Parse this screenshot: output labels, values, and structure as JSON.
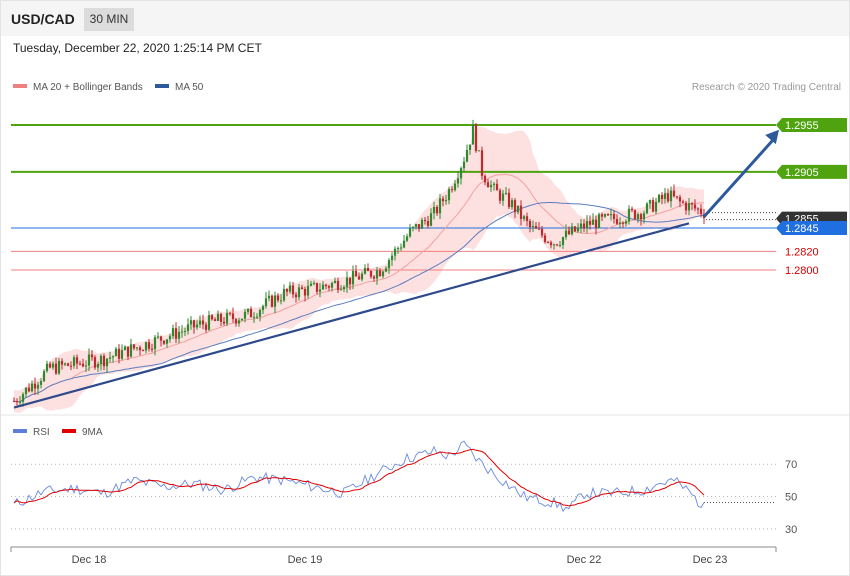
{
  "header": {
    "symbol": "USD/CAD",
    "timeframe": "30 MIN"
  },
  "datetime": "Tuesday, December 22, 2020 1:25:14 PM CET",
  "legend": [
    {
      "label": "MA 20 + Bollinger Bands",
      "color": "#f08080"
    },
    {
      "label": "MA 50",
      "color": "#2e5a9c"
    }
  ],
  "copyright": "Research © 2020 Trading Central",
  "rsi_legend": [
    {
      "label": "RSI",
      "color": "#5b7fd6"
    },
    {
      "label": "9MA",
      "color": "#e00000"
    }
  ],
  "colors": {
    "up": "#2f8a2f",
    "down": "#c0282d",
    "resistance": "#4ea30e",
    "support": "#f08080",
    "current": "#333333",
    "pivot": "#1f6fe0"
  },
  "chart_data": [
    {
      "type": "candlestick",
      "ylim": [
        1.2645,
        1.2985
      ],
      "x_ticks": [
        "Dec 18",
        "Dec 19",
        "Dec 22",
        "Dec 23"
      ],
      "levels": [
        {
          "label": "1.2955",
          "value": 1.2955,
          "kind": "resistance"
        },
        {
          "label": "1.2905",
          "value": 1.2905,
          "kind": "resistance"
        },
        {
          "label": "1.2855",
          "value": 1.2855,
          "kind": "current"
        },
        {
          "label": "1.2845",
          "value": 1.2845,
          "kind": "pivot"
        },
        {
          "label": "1.2820",
          "value": 1.282,
          "kind": "support"
        },
        {
          "label": "1.2800",
          "value": 1.28,
          "kind": "support"
        }
      ],
      "close_anchors": [
        [
          0,
          1.266
        ],
        [
          12,
          1.2695
        ],
        [
          30,
          1.2705
        ],
        [
          45,
          1.2722
        ],
        [
          62,
          1.2742
        ],
        [
          78,
          1.2752
        ],
        [
          90,
          1.2775
        ],
        [
          100,
          1.278
        ],
        [
          112,
          1.279
        ],
        [
          122,
          1.28
        ],
        [
          132,
          1.284
        ],
        [
          140,
          1.286
        ],
        [
          145,
          1.2885
        ],
        [
          150,
          1.292
        ],
        [
          153,
          1.295
        ],
        [
          156,
          1.2905
        ],
        [
          160,
          1.2885
        ],
        [
          166,
          1.287
        ],
        [
          172,
          1.2845
        ],
        [
          180,
          1.283
        ],
        [
          186,
          1.284
        ],
        [
          192,
          1.285
        ],
        [
          200,
          1.2855
        ],
        [
          210,
          1.2863
        ],
        [
          218,
          1.288
        ],
        [
          222,
          1.2872
        ],
        [
          230,
          1.2862
        ]
      ],
      "n_candles": 231,
      "trendline": {
        "from": [
          0,
          1.2653
        ],
        "to": [
          225,
          1.285
        ]
      },
      "forecast_arrow": {
        "from": [
          230,
          1.2857
        ],
        "to": [
          255,
          1.295
        ]
      }
    },
    {
      "type": "line",
      "name": "RSI",
      "ylim": [
        20,
        85
      ],
      "y_ticks": [
        "70",
        "50",
        "30"
      ],
      "rsi_anchors": [
        [
          0,
          45
        ],
        [
          10,
          53
        ],
        [
          20,
          55
        ],
        [
          30,
          52
        ],
        [
          40,
          60
        ],
        [
          50,
          56
        ],
        [
          60,
          58
        ],
        [
          70,
          54
        ],
        [
          80,
          62
        ],
        [
          90,
          60
        ],
        [
          100,
          56
        ],
        [
          110,
          52
        ],
        [
          120,
          63
        ],
        [
          130,
          73
        ],
        [
          140,
          78
        ],
        [
          145,
          75
        ],
        [
          150,
          82
        ],
        [
          155,
          72
        ],
        [
          160,
          64
        ],
        [
          170,
          50
        ],
        [
          180,
          46
        ],
        [
          185,
          42
        ],
        [
          190,
          52
        ],
        [
          200,
          52
        ],
        [
          210,
          54
        ],
        [
          215,
          58
        ],
        [
          220,
          60
        ],
        [
          225,
          53
        ],
        [
          230,
          43
        ]
      ]
    }
  ]
}
